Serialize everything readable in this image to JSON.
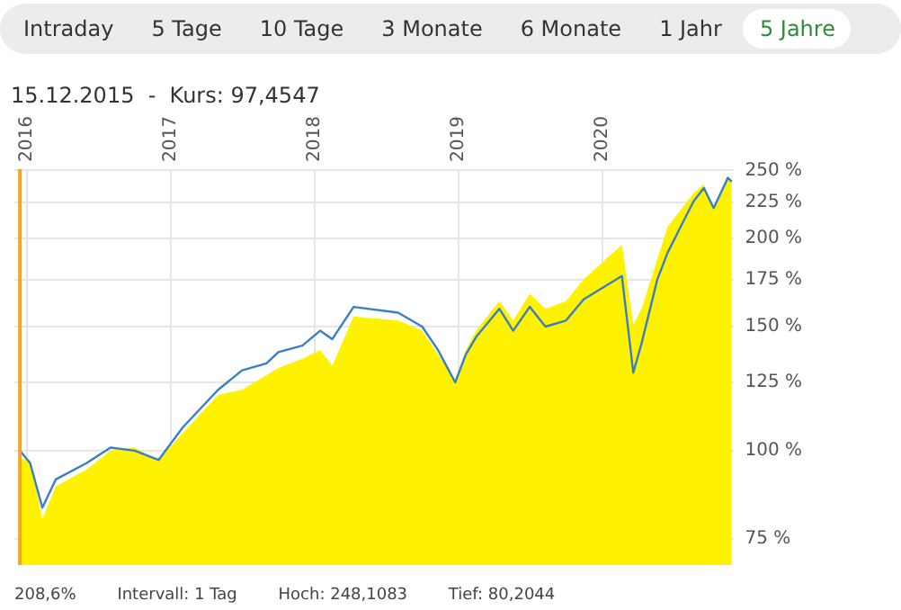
{
  "chart_data": {
    "type": "area",
    "title": "15.12.2015  -  Kurs: 97,4547",
    "subtitle": "208,6%        Intervall: 1 Tag        Hoch: 248,1083        Tief: 80,2044",
    "annotations": [
      "Intraday",
      "5 Tage",
      "10 Tage",
      "3 Monate",
      "6 Monate",
      "1 Jahr",
      "5 Jahre"
    ],
    "series": [
      {
        "color": "#fff200",
        "x": [
          "2015-12-15",
          "2016-01-10",
          "2016-02-10",
          "2016-03-15",
          "2016-06-01",
          "2016-08-01",
          "2016-10-01",
          "2016-12-01",
          "2017-02-01",
          "2017-05-01",
          "2017-07-01",
          "2017-09-01",
          "2017-10-01",
          "2017-12-01",
          "2018-01-15",
          "2018-02-15",
          "2018-04-10",
          "2018-08-01",
          "2018-10-01",
          "2018-11-10",
          "2018-12-24",
          "2019-01-20",
          "2019-02-15",
          "2019-04-15",
          "2019-05-20",
          "2019-07-01",
          "2019-08-10",
          "2019-10-01",
          "2019-11-15",
          "2020-02-20",
          "2020-03-20",
          "2020-04-10",
          "2020-05-20",
          "2020-06-15",
          "2020-08-20",
          "2020-09-15",
          "2020-10-10",
          "2020-11-15",
          "2020-11-25"
        ],
        "values": [
          97.45,
          97,
          80,
          89,
          94,
          100,
          101,
          97,
          106,
          120,
          122,
          128,
          131,
          135,
          139,
          132,
          155,
          153,
          148,
          137,
          126,
          139,
          148,
          163,
          153,
          167,
          159,
          163,
          175,
          196,
          151,
          159,
          187,
          208,
          232,
          239,
          222,
          245,
          241
        ]
      },
      {
        "type": "line",
        "color": "#3a7fc4",
        "x": [
          "2015-12-15",
          "2016-01-10",
          "2016-02-10",
          "2016-03-15",
          "2016-06-01",
          "2016-08-01",
          "2016-10-01",
          "2016-12-01",
          "2017-02-01",
          "2017-05-01",
          "2017-07-01",
          "2017-09-01",
          "2017-10-01",
          "2017-12-01",
          "2018-01-15",
          "2018-02-15",
          "2018-04-10",
          "2018-08-01",
          "2018-10-01",
          "2018-11-10",
          "2018-12-24",
          "2019-01-20",
          "2019-02-15",
          "2019-04-15",
          "2019-05-20",
          "2019-07-01",
          "2019-08-10",
          "2019-10-01",
          "2019-11-15",
          "2020-02-20",
          "2020-03-20",
          "2020-04-10",
          "2020-05-20",
          "2020-06-15",
          "2020-08-20",
          "2020-09-15",
          "2020-10-10",
          "2020-11-15",
          "2020-11-25"
        ],
        "values": [
          100,
          96,
          83,
          91,
          96,
          101,
          100,
          97,
          108,
          122,
          130,
          133,
          138,
          141,
          148,
          144,
          160,
          157,
          150,
          139,
          125,
          137,
          145,
          159,
          148,
          160,
          150,
          153,
          164,
          177,
          129,
          142,
          175,
          191,
          226,
          236,
          221,
          244,
          241
        ]
      }
    ],
    "xlim": [
      "2015-12-01",
      "2020-12-01"
    ],
    "xticks": [
      "2016",
      "2017",
      "2018",
      "2019",
      "2020"
    ],
    "ylim": [
      68.8,
      251
    ],
    "yticks": [
      {
        "value": 75,
        "label": "75 %"
      },
      {
        "value": 100,
        "label": "100 %"
      },
      {
        "value": 125,
        "label": "125 %"
      },
      {
        "value": 150,
        "label": "150 %"
      },
      {
        "value": 175,
        "label": "175 %"
      },
      {
        "value": 200,
        "label": "200 %"
      },
      {
        "value": 225,
        "label": "225 %"
      },
      {
        "value": 250,
        "label": "250 %"
      }
    ],
    "ref_lines": [
      {
        "axis": "x",
        "value": "2015-12-15",
        "color": "#f5a623"
      }
    ],
    "log": "y",
    "grid": true,
    "legend": false,
    "marker": "none",
    "line_style": "solid"
  }
}
